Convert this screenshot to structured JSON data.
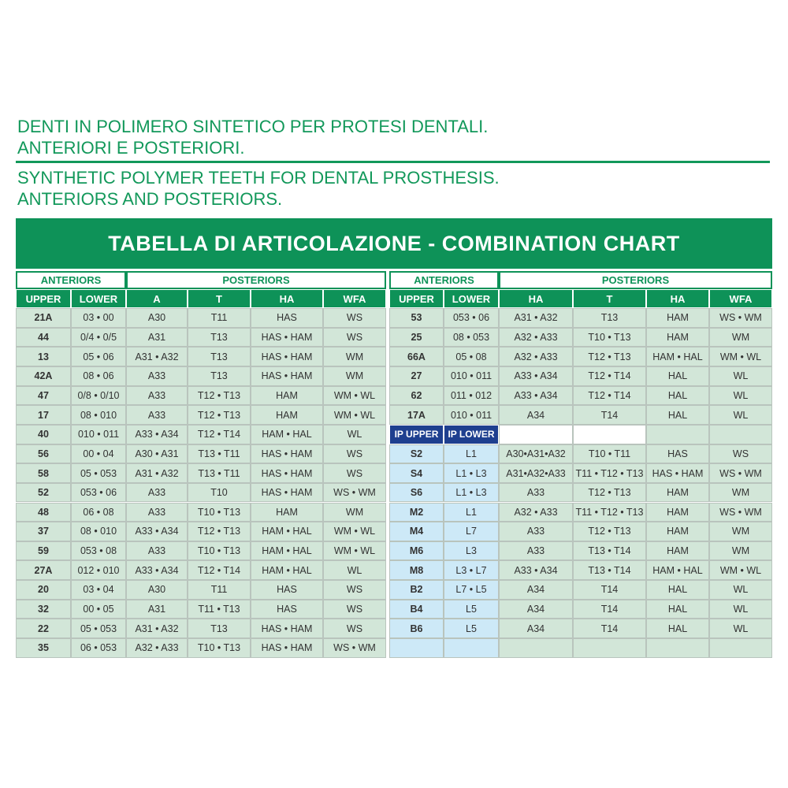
{
  "header": {
    "title_it": [
      "DENTI IN POLIMERO SINTETICO PER PROTESI DENTALI.",
      "ANTERIORI E POSTERIORI."
    ],
    "title_en": [
      "SYNTHETIC POLYMER TEETH FOR DENTAL PROSTHESIS.",
      "ANTERIORS AND POSTERIORS."
    ]
  },
  "table": {
    "title": "TABELLA DI ARTICOLAZIONE - COMBINATION CHART",
    "left": {
      "groups": [
        "ANTERIORS",
        "POSTERIORS"
      ],
      "columns": [
        "UPPER",
        "LOWER",
        "A",
        "T",
        "HA",
        "WFA"
      ],
      "rows": [
        [
          "21A",
          "03 • 00",
          "A30",
          "T11",
          "HAS",
          "WS"
        ],
        [
          "44",
          "0/4 • 0/5",
          "A31",
          "T13",
          "HAS • HAM",
          "WS"
        ],
        [
          "13",
          "05 • 06",
          "A31 • A32",
          "T13",
          "HAS • HAM",
          "WM"
        ],
        [
          "42A",
          "08 • 06",
          "A33",
          "T13",
          "HAS • HAM",
          "WM"
        ],
        [
          "47",
          "0/8 • 0/10",
          "A33",
          "T12 • T13",
          "HAM",
          "WM • WL"
        ],
        [
          "17",
          "08 • 010",
          "A33",
          "T12 • T13",
          "HAM",
          "WM • WL"
        ],
        [
          "40",
          "010 • 011",
          "A33 • A34",
          "T12 • T14",
          "HAM • HAL",
          "WL"
        ],
        [
          "56",
          "00 • 04",
          "A30 • A31",
          "T13 • T11",
          "HAS • HAM",
          "WS"
        ],
        [
          "58",
          "05 • 053",
          "A31 • A32",
          "T13 • T11",
          "HAS • HAM",
          "WS"
        ],
        [
          "52",
          "053 • 06",
          "A33",
          "T10",
          "HAS • HAM",
          "WS • WM"
        ],
        [
          "48",
          "06 • 08",
          "A33",
          "T10 • T13",
          "HAM",
          "WM"
        ],
        [
          "37",
          "08 • 010",
          "A33 • A34",
          "T12 • T13",
          "HAM • HAL",
          "WM • WL"
        ],
        [
          "59",
          "053 • 08",
          "A33",
          "T10 • T13",
          "HAM • HAL",
          "WM • WL"
        ],
        [
          "27A",
          "012 • 010",
          "A33 • A34",
          "T12 • T14",
          "HAM • HAL",
          "WL"
        ],
        [
          "20",
          "03 • 04",
          "A30",
          "T11",
          "HAS",
          "WS"
        ],
        [
          "32",
          "00 • 05",
          "A31",
          "T11 • T13",
          "HAS",
          "WS"
        ],
        [
          "22",
          "05 • 053",
          "A31 • A32",
          "T13",
          "HAS • HAM",
          "WS"
        ],
        [
          "35",
          "06 • 053",
          "A32 • A33",
          "T10 • T13",
          "HAS • HAM",
          "WS • WM"
        ]
      ]
    },
    "right": {
      "groups": [
        "ANTERIORS",
        "POSTERIORS"
      ],
      "columns": [
        "UPPER",
        "LOWER",
        "HA",
        "T",
        "HA",
        "WFA"
      ],
      "rows": [
        [
          "53",
          "053 • 06",
          "A31 • A32",
          "T13",
          "HAM",
          "WS • WM"
        ],
        [
          "25",
          "08 • 053",
          "A32 • A33",
          "T10 • T13",
          "HAM",
          "WM"
        ],
        [
          "66A",
          "05 • 08",
          "A32 • A33",
          "T12 • T13",
          "HAM • HAL",
          "WM • WL"
        ],
        [
          "27",
          "010 • 011",
          "A33 • A34",
          "T12 • T14",
          "HAL",
          "WL"
        ],
        [
          "62",
          "011 • 012",
          "A33 • A34",
          "T12 • T14",
          "HAL",
          "WL"
        ],
        [
          "17A",
          "010 • 011",
          "A34",
          "T14",
          "HAL",
          "WL"
        ]
      ],
      "ip_columns": [
        "IP UPPER",
        "IP LOWER"
      ],
      "ip_rows": [
        [
          "S2",
          "L1",
          "A30•A31•A32",
          "T10 • T11",
          "HAS",
          "WS"
        ],
        [
          "S4",
          "L1 • L3",
          "A31•A32•A33",
          "T11 • T12 • T13",
          "HAS • HAM",
          "WS • WM"
        ],
        [
          "S6",
          "L1 • L3",
          "A33",
          "T12 • T13",
          "HAM",
          "WM"
        ],
        [
          "M2",
          "L1",
          "A32 • A33",
          "T11 • T12 • T13",
          "HAM",
          "WS • WM"
        ],
        [
          "M4",
          "L7",
          "A33",
          "T12 • T13",
          "HAM",
          "WM"
        ],
        [
          "M6",
          "L3",
          "A33",
          "T13 • T14",
          "HAM",
          "WM"
        ],
        [
          "M8",
          "L3 • L7",
          "A33 • A34",
          "T13 • T14",
          "HAM • HAL",
          "WM • WL"
        ],
        [
          "B2",
          "L7 • L5",
          "A34",
          "T14",
          "HAL",
          "WL"
        ],
        [
          "B4",
          "L5",
          "A34",
          "T14",
          "HAL",
          "WL"
        ],
        [
          "B6",
          "L5",
          "A34",
          "T14",
          "HAL",
          "WL"
        ]
      ]
    }
  }
}
